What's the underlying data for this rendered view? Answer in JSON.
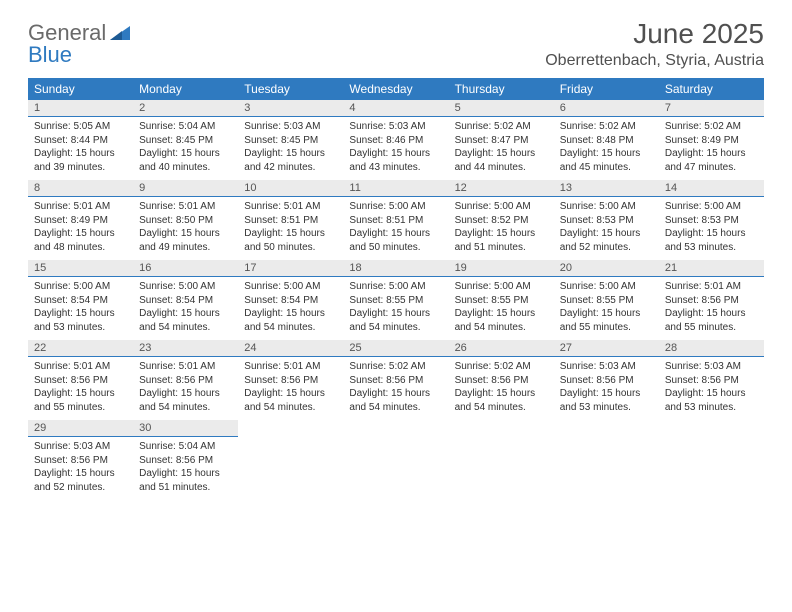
{
  "logo": {
    "line1": "General",
    "line2": "Blue"
  },
  "title": "June 2025",
  "location": "Oberrettenbach, Styria, Austria",
  "dayNames": [
    "Sunday",
    "Monday",
    "Tuesday",
    "Wednesday",
    "Thursday",
    "Friday",
    "Saturday"
  ],
  "colors": {
    "headerBg": "#2f7ac0",
    "headerText": "#ffffff",
    "dayNumBg": "#ebebeb",
    "dayNumBorder": "#2f7ac0",
    "bodyText": "#333333",
    "titleText": "#505050"
  },
  "weeks": [
    [
      {
        "n": "1",
        "sr": "5:05 AM",
        "ss": "8:44 PM",
        "dl": "15 hours and 39 minutes."
      },
      {
        "n": "2",
        "sr": "5:04 AM",
        "ss": "8:45 PM",
        "dl": "15 hours and 40 minutes."
      },
      {
        "n": "3",
        "sr": "5:03 AM",
        "ss": "8:45 PM",
        "dl": "15 hours and 42 minutes."
      },
      {
        "n": "4",
        "sr": "5:03 AM",
        "ss": "8:46 PM",
        "dl": "15 hours and 43 minutes."
      },
      {
        "n": "5",
        "sr": "5:02 AM",
        "ss": "8:47 PM",
        "dl": "15 hours and 44 minutes."
      },
      {
        "n": "6",
        "sr": "5:02 AM",
        "ss": "8:48 PM",
        "dl": "15 hours and 45 minutes."
      },
      {
        "n": "7",
        "sr": "5:02 AM",
        "ss": "8:49 PM",
        "dl": "15 hours and 47 minutes."
      }
    ],
    [
      {
        "n": "8",
        "sr": "5:01 AM",
        "ss": "8:49 PM",
        "dl": "15 hours and 48 minutes."
      },
      {
        "n": "9",
        "sr": "5:01 AM",
        "ss": "8:50 PM",
        "dl": "15 hours and 49 minutes."
      },
      {
        "n": "10",
        "sr": "5:01 AM",
        "ss": "8:51 PM",
        "dl": "15 hours and 50 minutes."
      },
      {
        "n": "11",
        "sr": "5:00 AM",
        "ss": "8:51 PM",
        "dl": "15 hours and 50 minutes."
      },
      {
        "n": "12",
        "sr": "5:00 AM",
        "ss": "8:52 PM",
        "dl": "15 hours and 51 minutes."
      },
      {
        "n": "13",
        "sr": "5:00 AM",
        "ss": "8:53 PM",
        "dl": "15 hours and 52 minutes."
      },
      {
        "n": "14",
        "sr": "5:00 AM",
        "ss": "8:53 PM",
        "dl": "15 hours and 53 minutes."
      }
    ],
    [
      {
        "n": "15",
        "sr": "5:00 AM",
        "ss": "8:54 PM",
        "dl": "15 hours and 53 minutes."
      },
      {
        "n": "16",
        "sr": "5:00 AM",
        "ss": "8:54 PM",
        "dl": "15 hours and 54 minutes."
      },
      {
        "n": "17",
        "sr": "5:00 AM",
        "ss": "8:54 PM",
        "dl": "15 hours and 54 minutes."
      },
      {
        "n": "18",
        "sr": "5:00 AM",
        "ss": "8:55 PM",
        "dl": "15 hours and 54 minutes."
      },
      {
        "n": "19",
        "sr": "5:00 AM",
        "ss": "8:55 PM",
        "dl": "15 hours and 54 minutes."
      },
      {
        "n": "20",
        "sr": "5:00 AM",
        "ss": "8:55 PM",
        "dl": "15 hours and 55 minutes."
      },
      {
        "n": "21",
        "sr": "5:01 AM",
        "ss": "8:56 PM",
        "dl": "15 hours and 55 minutes."
      }
    ],
    [
      {
        "n": "22",
        "sr": "5:01 AM",
        "ss": "8:56 PM",
        "dl": "15 hours and 55 minutes."
      },
      {
        "n": "23",
        "sr": "5:01 AM",
        "ss": "8:56 PM",
        "dl": "15 hours and 54 minutes."
      },
      {
        "n": "24",
        "sr": "5:01 AM",
        "ss": "8:56 PM",
        "dl": "15 hours and 54 minutes."
      },
      {
        "n": "25",
        "sr": "5:02 AM",
        "ss": "8:56 PM",
        "dl": "15 hours and 54 minutes."
      },
      {
        "n": "26",
        "sr": "5:02 AM",
        "ss": "8:56 PM",
        "dl": "15 hours and 54 minutes."
      },
      {
        "n": "27",
        "sr": "5:03 AM",
        "ss": "8:56 PM",
        "dl": "15 hours and 53 minutes."
      },
      {
        "n": "28",
        "sr": "5:03 AM",
        "ss": "8:56 PM",
        "dl": "15 hours and 53 minutes."
      }
    ],
    [
      {
        "n": "29",
        "sr": "5:03 AM",
        "ss": "8:56 PM",
        "dl": "15 hours and 52 minutes."
      },
      {
        "n": "30",
        "sr": "5:04 AM",
        "ss": "8:56 PM",
        "dl": "15 hours and 51 minutes."
      },
      null,
      null,
      null,
      null,
      null
    ]
  ],
  "labels": {
    "sunrise": "Sunrise:",
    "sunset": "Sunset:",
    "daylight": "Daylight:"
  }
}
